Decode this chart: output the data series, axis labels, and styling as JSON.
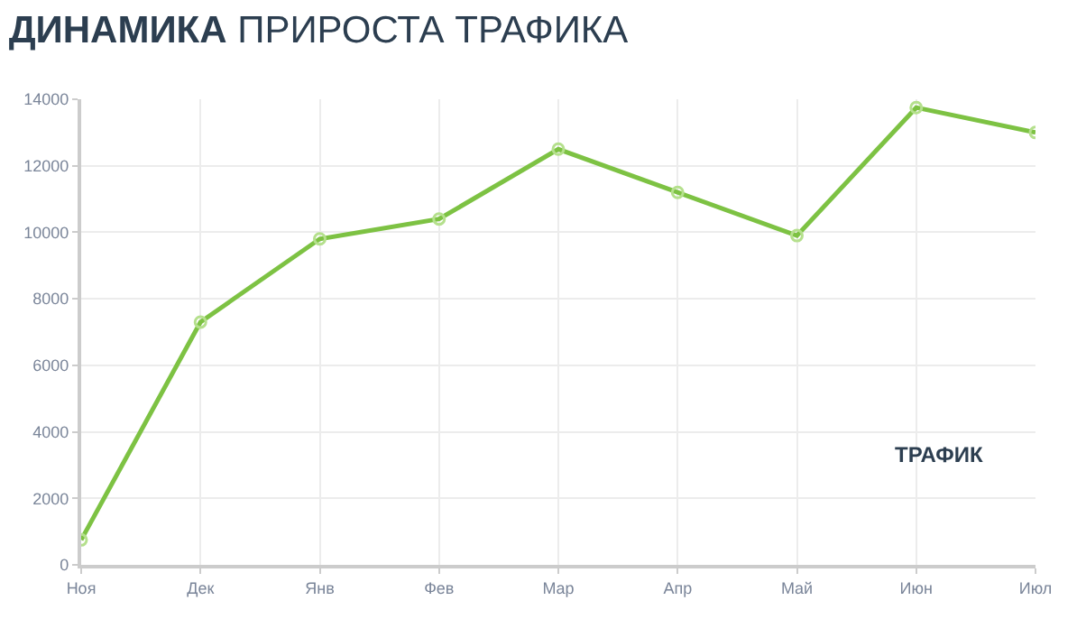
{
  "chart_data": {
    "type": "line",
    "title": "ДИНАМИКА ПРИРОСТА ТРАФИКА",
    "categories": [
      "Ноя",
      "Дек",
      "Янв",
      "Фев",
      "Мар",
      "Апр",
      "Май",
      "Июн",
      "Июл"
    ],
    "series": [
      {
        "name": "ТРАФИК",
        "color": "#7dc243",
        "values": [
          750,
          7300,
          9800,
          10400,
          12500,
          11200,
          9900,
          13750,
          13000
        ]
      }
    ],
    "ylim": [
      0,
      14000
    ],
    "yticks": [
      0,
      2000,
      4000,
      6000,
      8000,
      10000,
      12000,
      14000
    ],
    "grid": true,
    "legend": "bottom right",
    "marker": "circle",
    "line_style": "solid"
  }
}
